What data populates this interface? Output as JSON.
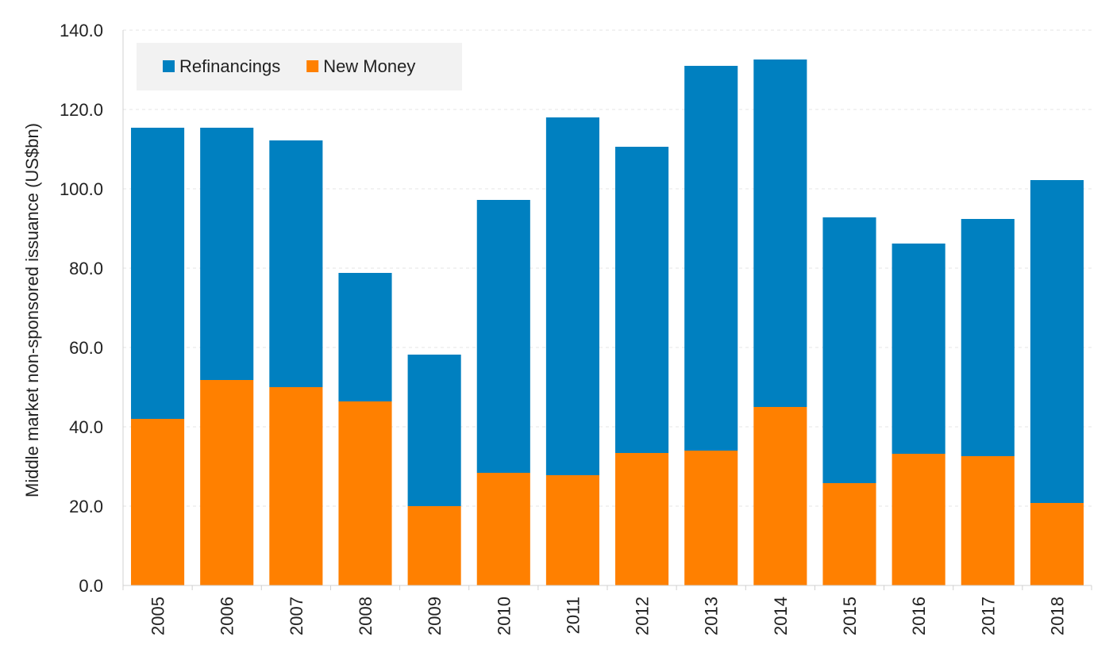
{
  "chart_data": {
    "type": "bar",
    "stacked": true,
    "title": "",
    "xlabel": "",
    "ylabel": "Middle market non-sponsored issuance (US$bn)",
    "ylim": [
      0,
      140
    ],
    "yticks": [
      "0.0",
      "20.0",
      "40.0",
      "60.0",
      "80.0",
      "100.0",
      "120.0",
      "140.0"
    ],
    "grid": true,
    "legend_position": "top-left",
    "categories": [
      "2005",
      "2006",
      "2007",
      "2008",
      "2009",
      "2010",
      "2011",
      "2012",
      "2013",
      "2014",
      "2015",
      "2016",
      "2017",
      "2018"
    ],
    "series": [
      {
        "name": "New Money",
        "color": "#ff8000",
        "values": [
          42.0,
          51.8,
          50.0,
          46.4,
          20.0,
          28.4,
          27.8,
          33.4,
          34.0,
          45.0,
          25.8,
          33.2,
          32.6,
          20.8
        ]
      },
      {
        "name": "Refinancings",
        "color": "#0080c0",
        "values": [
          73.4,
          63.6,
          62.2,
          32.4,
          38.2,
          68.8,
          90.2,
          77.2,
          97.0,
          87.6,
          67.0,
          53.0,
          59.8,
          81.4
        ]
      }
    ],
    "legend_order": [
      "Refinancings",
      "New Money"
    ]
  }
}
